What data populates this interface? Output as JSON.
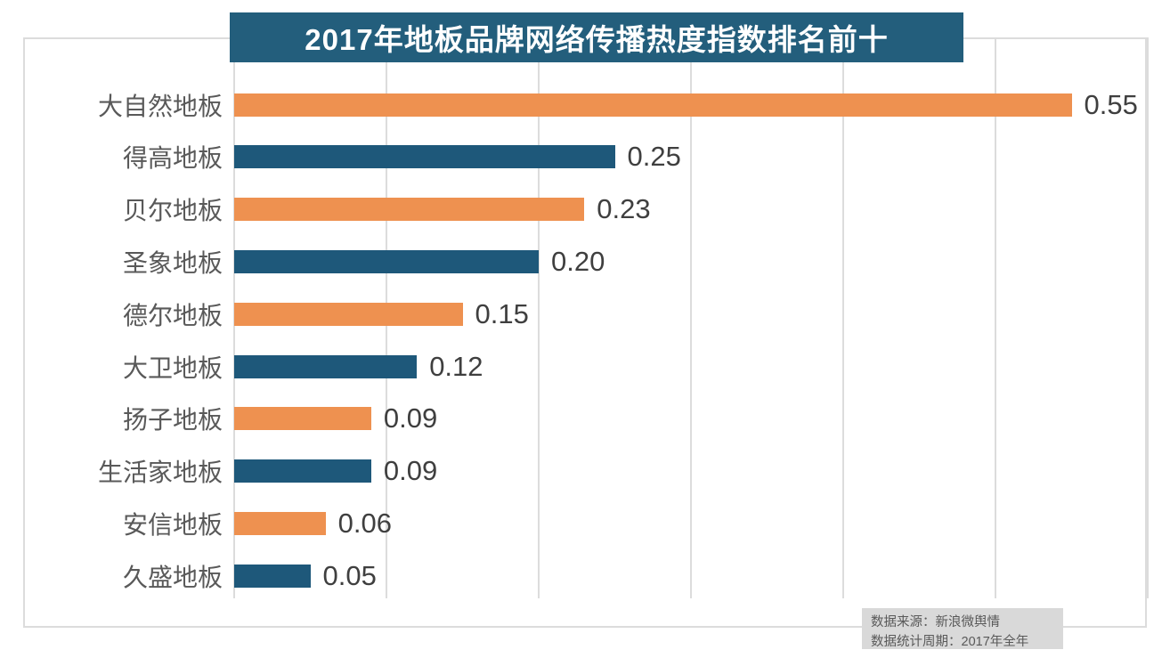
{
  "title": {
    "text": "2017年地板品牌网络传播热度指数排名前十",
    "bg_color": "#235e7c",
    "text_color": "#ffffff"
  },
  "chart_data": {
    "type": "bar",
    "orientation": "horizontal",
    "title": "2017年地板品牌网络传播热度指数排名前十",
    "categories": [
      "大自然地板",
      "得高地板",
      "贝尔地板",
      "圣象地板",
      "德尔地板",
      "大卫地板",
      "扬子地板",
      "生活家地板",
      "安信地板",
      "久盛地板"
    ],
    "values": [
      0.55,
      0.25,
      0.23,
      0.2,
      0.15,
      0.12,
      0.09,
      0.09,
      0.06,
      0.05
    ],
    "value_labels": [
      "0.55",
      "0.25",
      "0.23",
      "0.20",
      "0.15",
      "0.12",
      "0.09",
      "0.09",
      "0.06",
      "0.05"
    ],
    "xlim": [
      0,
      0.6
    ],
    "gridline_interval": 0.1,
    "grid": "vertical-only",
    "legend_position": "none",
    "bar_color_odd_rows": "#ee9150",
    "bar_color_even_rows": "#1e587a",
    "label_color": "#595959",
    "value_color": "#3f3f3f",
    "gridline_color": "#dcdcdc"
  },
  "footer": {
    "source_line": "数据来源：新浪微舆情",
    "period_line": "数据统计周期：2017年全年",
    "bg_color": "#d9d9d9",
    "text_color": "#595959"
  }
}
